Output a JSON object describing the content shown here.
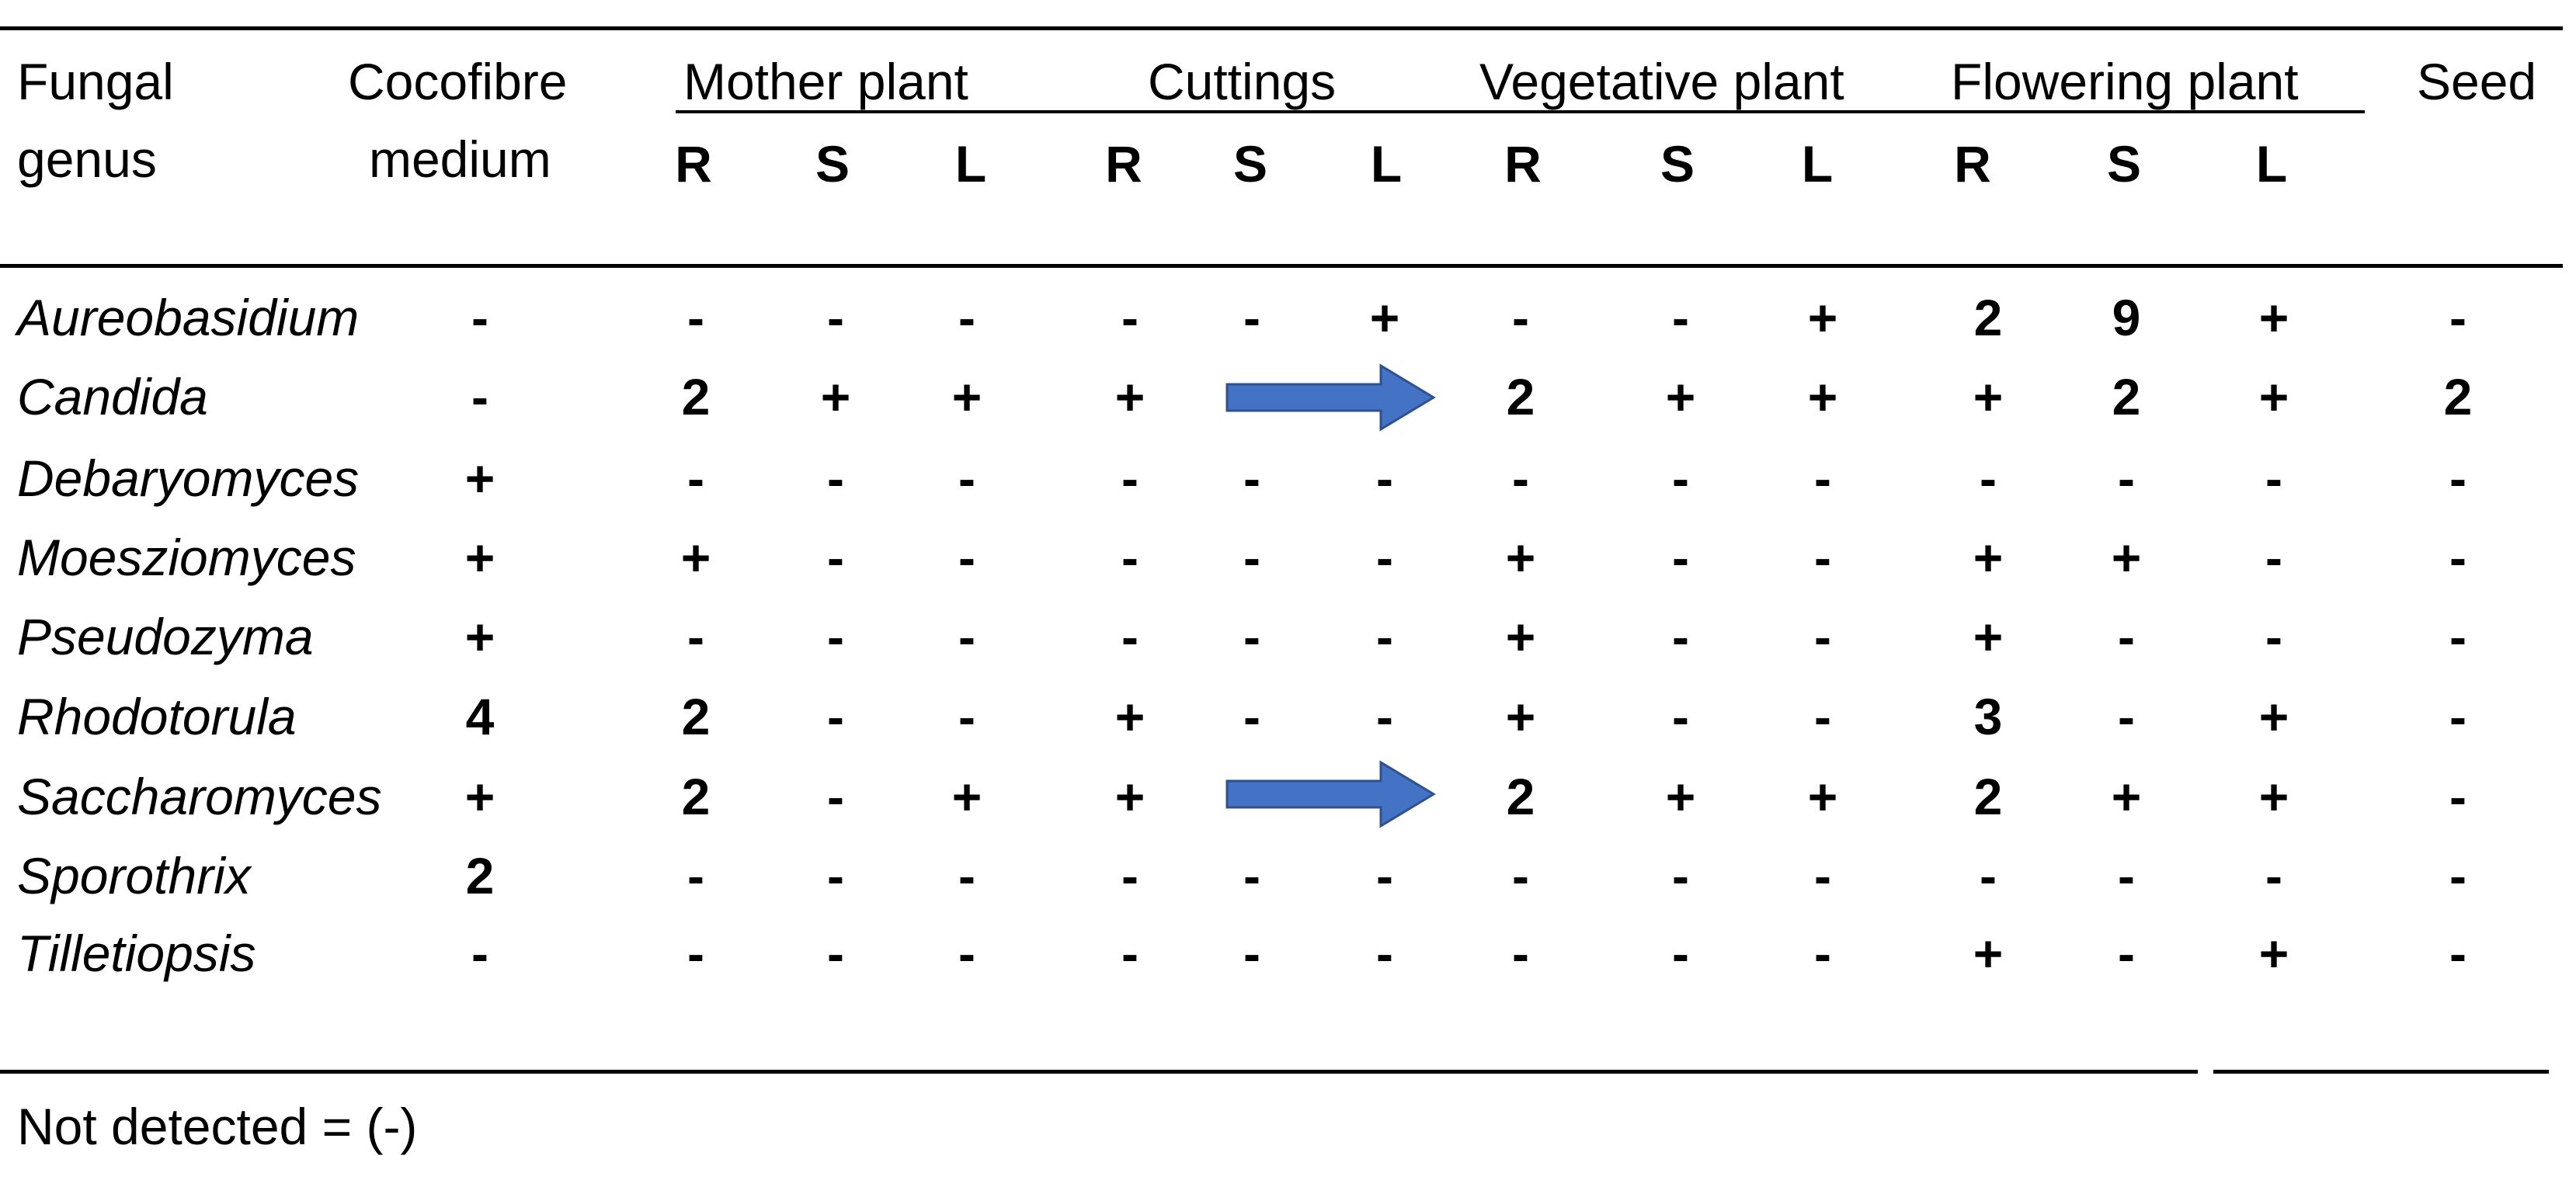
{
  "table": {
    "header": {
      "col_genus": [
        "Fungal",
        "genus"
      ],
      "col_medium": [
        "Cocofibre",
        "medium"
      ],
      "groups": [
        "Mother plant",
        "Cuttings",
        "Vegetative plant",
        "Flowering plant",
        "Seed"
      ],
      "subheaders": [
        "R",
        "S",
        "L",
        "R",
        "S",
        "L",
        "R",
        "S",
        "L",
        "R",
        "S",
        "L"
      ]
    },
    "rows": [
      {
        "genus": "Aureobasidium",
        "medium": "-",
        "cells": [
          "-",
          "-",
          "-",
          "-",
          "-",
          "+",
          "-",
          "-",
          "+",
          "2",
          "9",
          "+",
          "-"
        ]
      },
      {
        "genus": "Candida",
        "medium": "-",
        "cells": [
          "2",
          "+",
          "+",
          "+",
          "",
          "",
          "2",
          "+",
          "+",
          "+",
          "2",
          "+",
          "2"
        ]
      },
      {
        "genus": "Debaryomyces",
        "medium": "+",
        "cells": [
          "-",
          "-",
          "-",
          "-",
          "-",
          "-",
          "-",
          "-",
          "-",
          "-",
          "-",
          "-",
          "-"
        ]
      },
      {
        "genus": "Moesziomyces",
        "medium": "+",
        "cells": [
          "+",
          "-",
          "-",
          "-",
          "-",
          "-",
          "+",
          "-",
          "-",
          "+",
          "+",
          "-",
          "-"
        ]
      },
      {
        "genus": "Pseudozyma",
        "medium": "+",
        "cells": [
          "-",
          "-",
          "-",
          "-",
          "-",
          "-",
          "+",
          "-",
          "-",
          "+",
          "-",
          "-",
          "-"
        ]
      },
      {
        "genus": "Rhodotorula",
        "medium": "4",
        "cells": [
          "2",
          "-",
          "-",
          "+",
          "-",
          "-",
          "+",
          "-",
          "-",
          "3",
          "-",
          "+",
          "-"
        ]
      },
      {
        "genus": "Saccharomyces",
        "medium": "+",
        "cells": [
          "2",
          "-",
          "+",
          "+",
          "",
          "",
          "2",
          "+",
          "+",
          "2",
          "+",
          "+",
          "-"
        ]
      },
      {
        "genus": "Sporothrix",
        "medium": "2",
        "cells": [
          "-",
          "-",
          "-",
          "-",
          "-",
          "-",
          "-",
          "-",
          "-",
          "-",
          "-",
          "-",
          "-"
        ]
      },
      {
        "genus": "Tilletiopsis",
        "medium": "-",
        "cells": [
          "-",
          "-",
          "-",
          "-",
          "-",
          "-",
          "-",
          "-",
          "-",
          "+",
          "-",
          "+",
          "-"
        ]
      }
    ],
    "arrows": [
      {
        "row": "Candida",
        "icon": "right-arrow-icon",
        "color": "#4472C4"
      },
      {
        "row": "Saccharomyces",
        "icon": "right-arrow-icon",
        "color": "#4472C4"
      }
    ],
    "footnote": "Not detected = (-)"
  }
}
